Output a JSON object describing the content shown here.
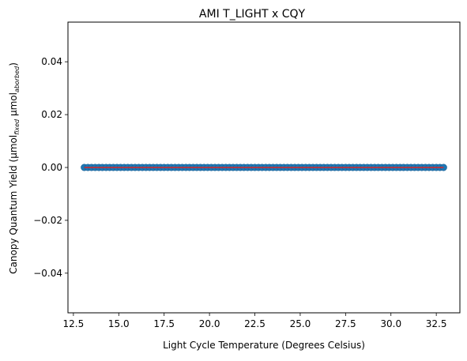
{
  "chart_data": {
    "type": "scatter",
    "title": "AMI T_LIGHT x CQY",
    "xlabel": "Light Cycle Temperature (Degrees Celsius)",
    "ylabel": {
      "prefix": "Canopy Quantum Yield (µmol",
      "sub1": "fixed",
      "middle": " µmol",
      "sub2": "aborbed",
      "suffix": ")"
    },
    "xlim": [
      12.2,
      33.8
    ],
    "ylim": [
      -0.055,
      0.055
    ],
    "xticks": [
      12.5,
      15.0,
      17.5,
      20.0,
      22.5,
      25.0,
      27.5,
      30.0,
      32.5
    ],
    "xtick_labels": [
      "12.5",
      "15.0",
      "17.5",
      "20.0",
      "22.5",
      "25.0",
      "27.5",
      "30.0",
      "32.5"
    ],
    "yticks": [
      -0.04,
      -0.02,
      0.0,
      0.02,
      0.04
    ],
    "ytick_labels": [
      "−0.04",
      "−0.02",
      "0.00",
      "0.02",
      "0.04"
    ],
    "grid": false,
    "series": [
      {
        "kind": "points",
        "color": "#1f77b4",
        "x_range": [
          13.1,
          32.9
        ],
        "x_step": 0.2,
        "y": 0.0
      },
      {
        "kind": "fit-line",
        "color": "#d62728",
        "x": [
          13.1,
          32.9
        ],
        "y": [
          0.0,
          0.0
        ]
      }
    ]
  }
}
